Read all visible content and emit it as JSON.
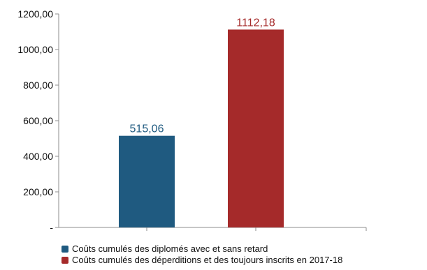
{
  "chart_data": {
    "type": "bar",
    "categories": [
      "Coûts cumulés des diplomés avec et sans retard",
      "Coûts cumulés des déperditions et des toujours inscrits en 2017-18"
    ],
    "values": [
      515.06,
      1112.18
    ],
    "value_labels": [
      "515,06",
      "1112,18"
    ],
    "colors": [
      "#1f5a80",
      "#a52a2a"
    ],
    "ylim": [
      0,
      1200
    ],
    "y_ticks": [
      {
        "value": 0,
        "label": "-"
      },
      {
        "value": 200,
        "label": "200,00"
      },
      {
        "value": 400,
        "label": "400,00"
      },
      {
        "value": 600,
        "label": "600,00"
      },
      {
        "value": 800,
        "label": "800,00"
      },
      {
        "value": 1000,
        "label": "1000,00"
      },
      {
        "value": 1200,
        "label": "1200,00"
      }
    ],
    "grid": false,
    "legend_position": "bottom",
    "title": "",
    "xlabel": "",
    "ylabel": ""
  },
  "legend": {
    "items": [
      {
        "label": "Coûts cumulés des diplomés avec et sans retard",
        "color": "#1f5a80"
      },
      {
        "label": "Coûts cumulés des déperditions et des toujours inscrits en 2017-18",
        "color": "#a52a2a"
      }
    ]
  }
}
